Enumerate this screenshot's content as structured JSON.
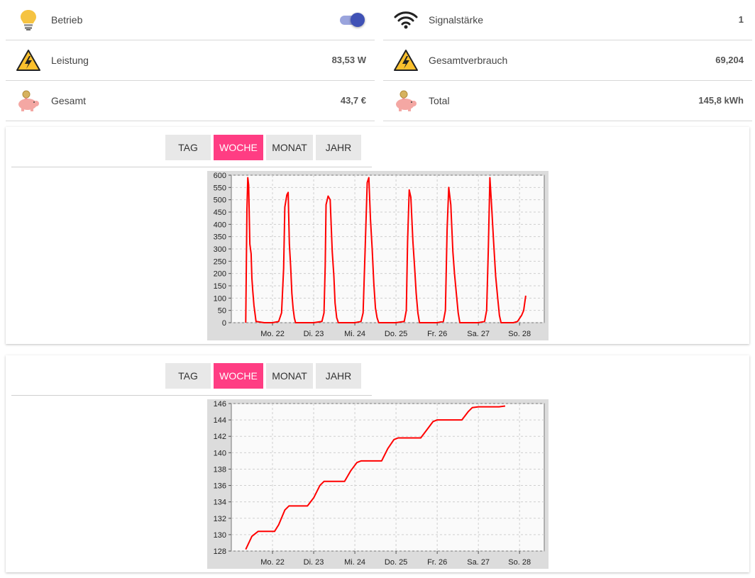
{
  "tiles_left": [
    {
      "icon": "lightbulb-icon",
      "label": "Betrieb",
      "toggle": true
    },
    {
      "icon": "high-voltage-warning-icon",
      "label": "Leistung",
      "value": "83,53 W"
    },
    {
      "icon": "piggy-bank-icon",
      "label": "Gesamt",
      "value": "43,7 €"
    }
  ],
  "tiles_right": [
    {
      "icon": "wifi-signal-icon",
      "label": "Signalstärke",
      "value": "1"
    },
    {
      "icon": "high-voltage-warning-icon",
      "label": "Gesamtverbrauch",
      "value": "69,204"
    },
    {
      "icon": "piggy-bank-icon",
      "label": "Total",
      "value": "145,8 kWh"
    }
  ],
  "tabs": [
    "TAG",
    "WOCHE",
    "MONAT",
    "JAHR"
  ],
  "active_tab": "WOCHE",
  "colors": {
    "accent": "#ff3d83",
    "toggle": "#3f51b5",
    "series": "#ff0000"
  },
  "chart_data": [
    {
      "type": "line",
      "title": "",
      "xlabel": "",
      "ylabel": "",
      "categories": [
        "Mo. 22",
        "Di. 23",
        "Mi. 24",
        "Do. 25",
        "Fr. 26",
        "Sa. 27",
        "So. 28"
      ],
      "ylim": [
        0,
        600
      ],
      "yticks": [
        0,
        50,
        100,
        150,
        200,
        250,
        300,
        350,
        400,
        450,
        500,
        550,
        600
      ],
      "grid": true,
      "series": [
        {
          "values": [
            [
              -0.65,
              0
            ],
            [
              -0.62,
              460
            ],
            [
              -0.6,
              590
            ],
            [
              -0.58,
              560
            ],
            [
              -0.55,
              320
            ],
            [
              -0.52,
              280
            ],
            [
              -0.5,
              180
            ],
            [
              -0.48,
              130
            ],
            [
              -0.45,
              70
            ],
            [
              -0.42,
              30
            ],
            [
              -0.4,
              5
            ],
            [
              -0.2,
              0
            ],
            [
              0.0,
              0
            ],
            [
              0.15,
              5
            ],
            [
              0.22,
              40
            ],
            [
              0.27,
              220
            ],
            [
              0.3,
              470
            ],
            [
              0.35,
              520
            ],
            [
              0.38,
              530
            ],
            [
              0.41,
              320
            ],
            [
              0.44,
              230
            ],
            [
              0.47,
              120
            ],
            [
              0.5,
              60
            ],
            [
              0.53,
              20
            ],
            [
              0.56,
              0
            ],
            [
              1.0,
              0
            ],
            [
              1.2,
              5
            ],
            [
              1.25,
              40
            ],
            [
              1.28,
              230
            ],
            [
              1.3,
              480
            ],
            [
              1.35,
              515
            ],
            [
              1.4,
              500
            ],
            [
              1.45,
              290
            ],
            [
              1.49,
              190
            ],
            [
              1.52,
              80
            ],
            [
              1.56,
              20
            ],
            [
              1.6,
              0
            ],
            [
              2.0,
              0
            ],
            [
              2.15,
              5
            ],
            [
              2.2,
              40
            ],
            [
              2.25,
              300
            ],
            [
              2.3,
              570
            ],
            [
              2.34,
              590
            ],
            [
              2.38,
              420
            ],
            [
              2.42,
              300
            ],
            [
              2.46,
              160
            ],
            [
              2.5,
              60
            ],
            [
              2.54,
              20
            ],
            [
              2.58,
              0
            ],
            [
              3.0,
              0
            ],
            [
              3.2,
              5
            ],
            [
              3.25,
              50
            ],
            [
              3.28,
              330
            ],
            [
              3.32,
              540
            ],
            [
              3.36,
              510
            ],
            [
              3.41,
              330
            ],
            [
              3.45,
              230
            ],
            [
              3.49,
              120
            ],
            [
              3.53,
              40
            ],
            [
              3.57,
              0
            ],
            [
              4.0,
              0
            ],
            [
              4.15,
              5
            ],
            [
              4.2,
              50
            ],
            [
              4.24,
              380
            ],
            [
              4.28,
              550
            ],
            [
              4.33,
              480
            ],
            [
              4.38,
              290
            ],
            [
              4.42,
              200
            ],
            [
              4.47,
              110
            ],
            [
              4.51,
              40
            ],
            [
              4.55,
              0
            ],
            [
              5.0,
              0
            ],
            [
              5.15,
              5
            ],
            [
              5.2,
              50
            ],
            [
              5.24,
              290
            ],
            [
              5.28,
              590
            ],
            [
              5.32,
              480
            ],
            [
              5.37,
              330
            ],
            [
              5.42,
              190
            ],
            [
              5.47,
              100
            ],
            [
              5.51,
              30
            ],
            [
              5.55,
              0
            ],
            [
              5.85,
              0
            ],
            [
              5.95,
              5
            ],
            [
              6.05,
              30
            ],
            [
              6.1,
              50
            ],
            [
              6.15,
              110
            ]
          ]
        }
      ]
    },
    {
      "type": "line",
      "title": "",
      "xlabel": "",
      "ylabel": "",
      "categories": [
        "Mo. 22",
        "Di. 23",
        "Mi. 24",
        "Do. 25",
        "Fr. 26",
        "Sa. 27",
        "So. 28"
      ],
      "ylim": [
        128,
        146
      ],
      "yticks": [
        128,
        130,
        132,
        134,
        136,
        138,
        140,
        142,
        144,
        146
      ],
      "grid": true,
      "series": [
        {
          "values": [
            [
              -0.65,
              128.2
            ],
            [
              -0.5,
              129.8
            ],
            [
              -0.35,
              130.4
            ],
            [
              0.05,
              130.4
            ],
            [
              0.15,
              131.2
            ],
            [
              0.3,
              133.0
            ],
            [
              0.4,
              133.5
            ],
            [
              0.85,
              133.5
            ],
            [
              1.0,
              134.5
            ],
            [
              1.15,
              136.0
            ],
            [
              1.25,
              136.5
            ],
            [
              1.75,
              136.5
            ],
            [
              1.9,
              137.8
            ],
            [
              2.05,
              138.8
            ],
            [
              2.15,
              139.0
            ],
            [
              2.65,
              139.0
            ],
            [
              2.8,
              140.5
            ],
            [
              2.95,
              141.6
            ],
            [
              3.05,
              141.8
            ],
            [
              3.6,
              141.8
            ],
            [
              3.75,
              142.8
            ],
            [
              3.9,
              143.8
            ],
            [
              4.0,
              144.0
            ],
            [
              4.6,
              144.0
            ],
            [
              4.75,
              145.0
            ],
            [
              4.85,
              145.5
            ],
            [
              5.0,
              145.6
            ],
            [
              5.5,
              145.6
            ],
            [
              5.65,
              145.7
            ]
          ]
        }
      ]
    }
  ]
}
